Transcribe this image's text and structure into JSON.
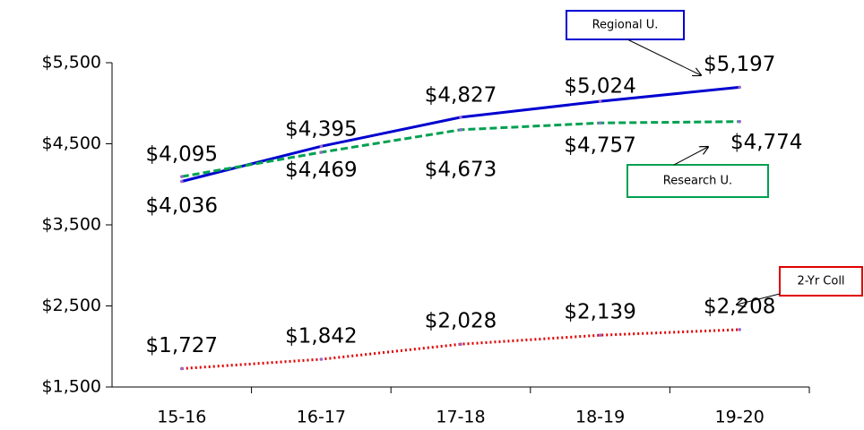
{
  "chart_data": {
    "type": "line",
    "categories": [
      "15-16",
      "16-17",
      "17-18",
      "18-19",
      "19-20"
    ],
    "series": [
      {
        "name": "Regional U.",
        "color": "#0000d0",
        "dash": "solid",
        "values": [
          4036,
          4469,
          4827,
          5024,
          5197
        ],
        "value_labels": [
          "$4,036",
          "$4,469",
          "$4,827",
          "$5,024",
          "$5,197"
        ]
      },
      {
        "name": "Research U.",
        "color": "#00a050",
        "dash": "dashed",
        "values": [
          4095,
          4395,
          4673,
          4757,
          4774
        ],
        "value_labels": [
          "$4,095",
          "$4,395",
          "$4,673",
          "$4,757",
          "$4,774"
        ]
      },
      {
        "name": "2-Yr Coll",
        "color": "#e00000",
        "dash": "dotted",
        "values": [
          1727,
          1842,
          2028,
          2139,
          2208
        ],
        "value_labels": [
          "$1,727",
          "$1,842",
          "$2,028",
          "$2,139",
          "$2,208"
        ]
      }
    ],
    "ylim": [
      1500,
      5500
    ],
    "yticks": [
      {
        "value": 1500,
        "label": "$1,500"
      },
      {
        "value": 2500,
        "label": "$2,500"
      },
      {
        "value": 3500,
        "label": "$3,500"
      },
      {
        "value": 4500,
        "label": "$4,500"
      },
      {
        "value": 5500,
        "label": "$5,500"
      }
    ]
  }
}
